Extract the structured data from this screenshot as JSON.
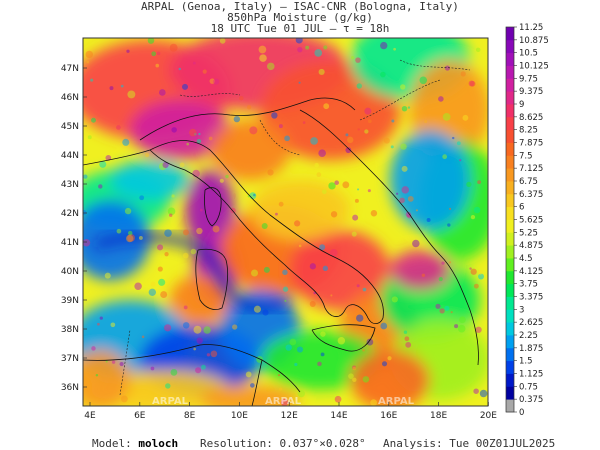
{
  "header": {
    "line1": "ARPAL (Genoa, Italy)  –  ISAC-CNR (Bologna, Italy)",
    "line2": "850hPa Moisture (g/kg)",
    "line3": "18 UTC Tue 01 JUL  –  τ = 18h"
  },
  "footer": {
    "model_label": "Model:",
    "model_value": "moloch",
    "resolution_label": "Resolution:",
    "resolution_value": "0.037°×0.028°",
    "analysis_label": "Analysis:",
    "analysis_value": "Tue 00Z01JUL2025"
  },
  "map": {
    "lat_labels": [
      "36N",
      "37N",
      "38N",
      "39N",
      "40N",
      "41N",
      "42N",
      "43N",
      "44N",
      "45N",
      "46N",
      "47N"
    ],
    "lon_labels": [
      "4E",
      "6E",
      "8E",
      "10E",
      "12E",
      "14E",
      "16E",
      "18E",
      "20E"
    ],
    "watermark": "ARPAL",
    "colorbar_labels": [
      "0",
      "0.375",
      "0.75",
      "1.125",
      "1.5",
      "1.875",
      "2.25",
      "2.625",
      "3",
      "3.375",
      "3.75",
      "4.125",
      "4.5",
      "4.875",
      "5.25",
      "5.625",
      "6",
      "6.375",
      "6.75",
      "7.125",
      "7.5",
      "7.875",
      "8.25",
      "8.625",
      "9",
      "9.375",
      "9.75",
      "10.125",
      "10.5",
      "10.875",
      "11.25"
    ],
    "colors": [
      "#a8a8a8",
      "#0000a0",
      "#0018c8",
      "#0040e8",
      "#0070f0",
      "#00a0f0",
      "#00c8e0",
      "#00e0c0",
      "#00e890",
      "#00e858",
      "#20e830",
      "#60f020",
      "#a0f020",
      "#d0f020",
      "#f0f020",
      "#f8e020",
      "#f8c820",
      "#f8b020",
      "#f89820",
      "#f88020",
      "#f86820",
      "#f85030",
      "#f84048",
      "#f03068",
      "#e02888",
      "#d020a0",
      "#b818b0",
      "#a010b8",
      "#8808b8",
      "#7000b0"
    ]
  }
}
